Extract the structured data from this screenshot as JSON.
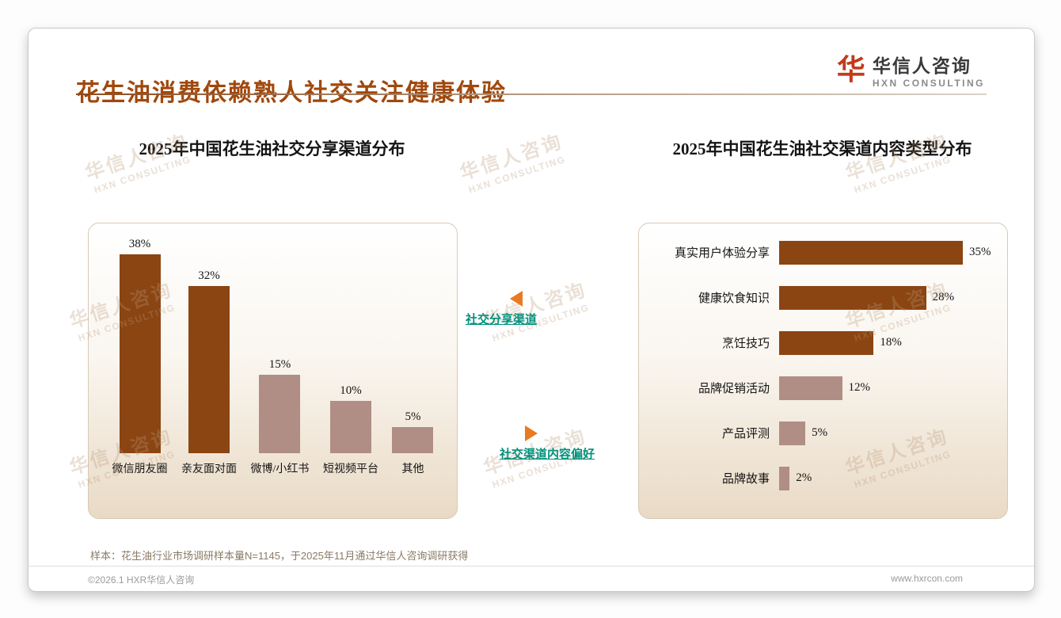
{
  "page": {
    "title": "花生油消费依赖熟人社交关注健康体验",
    "logo": {
      "mark": "华",
      "name": "华信人咨询",
      "sub": "HXN CONSULTING"
    },
    "watermark": {
      "line1": "华信人咨询",
      "line2": "HXN CONSULTING"
    },
    "note": "样本：花生油行业市场调研样本量N=1145，于2025年11月通过华信人咨询调研获得",
    "footer": {
      "left": "©2026.1 HXR华信人咨询",
      "right": "www.hxrcon.com"
    }
  },
  "annotations": [
    {
      "label": "社交分享渠道",
      "direction": "left"
    },
    {
      "label": "社交渠道内容偏好",
      "direction": "right"
    }
  ],
  "colors": {
    "title_brown": "#A0480D",
    "bar_dark": "#8B4513",
    "bar_light": "#B08E85",
    "accent_teal": "#00917C",
    "arrow_orange": "#EA7A20",
    "panel_tan": "#E9DAC5",
    "logo_red": "#C23A1A"
  },
  "chart_data": [
    {
      "type": "bar",
      "title": "2025年中国花生油社交分享渠道分布",
      "categories": [
        "微信朋友圈",
        "亲友面对面",
        "微博/小红书",
        "短视频平台",
        "其他"
      ],
      "values": [
        38,
        32,
        15,
        10,
        5
      ],
      "unit": "%",
      "colors": [
        "#8B4513",
        "#8B4513",
        "#B08E85",
        "#B08E85",
        "#B08E85"
      ],
      "ylim": [
        0,
        40
      ],
      "grid": false,
      "legend": "none"
    },
    {
      "type": "bar",
      "orientation": "horizontal",
      "title": "2025年中国花生油社交渠道内容类型分布",
      "categories": [
        "真实用户体验分享",
        "健康饮食知识",
        "烹饪技巧",
        "品牌促销活动",
        "产品评测",
        "品牌故事"
      ],
      "values": [
        35,
        28,
        18,
        12,
        5,
        2
      ],
      "unit": "%",
      "colors": [
        "#8B4513",
        "#8B4513",
        "#8B4513",
        "#B08E85",
        "#B08E85",
        "#B08E85"
      ],
      "xlim": [
        0,
        40
      ],
      "grid": false,
      "legend": "none"
    }
  ]
}
